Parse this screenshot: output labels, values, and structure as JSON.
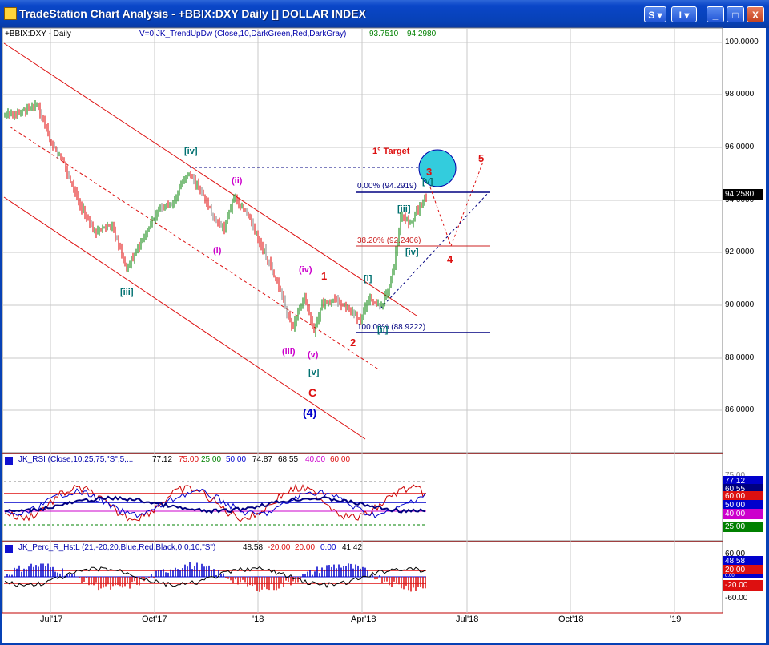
{
  "window": {
    "title": "TradeStation Chart Analysis - +BBIX:DXY Daily [] DOLLAR INDEX",
    "btn_s": "S",
    "btn_i": "I",
    "btn_min": "_",
    "btn_max": "□",
    "btn_close": "X"
  },
  "price_panel": {
    "symbol_label": "+BBIX:DXY - Daily",
    "indicator_label": "V=0  JK_TrendUpDw (Close,10,DarkGreen,Red,DarkGray)",
    "indicator_values": [
      "93.7510",
      "94.2980"
    ],
    "last_price": "94.2580",
    "y_axis": [
      "100.0000",
      "98.0000",
      "96.0000",
      "94.0000",
      "92.0000",
      "90.0000",
      "88.0000",
      "86.0000"
    ],
    "annotations": {
      "target": "1° Target",
      "fib_0": "0.00% (94.2919)",
      "fib_382": "38.20% (92.2406)",
      "fib_100": "100.00% (88.9222)"
    },
    "waves": {
      "iv_green_top": "[iv]",
      "iii_green": "[iii]",
      "ii_mag": "(ii)",
      "i_mag": "(i)",
      "iv_mag": "(iv)",
      "iii_mag": "(iii)",
      "v_mag": "(v)",
      "v_green": "[v]",
      "C_red": "C",
      "four_blue": "(4)",
      "one_red": "1",
      "two_red": "2",
      "three_red": "3",
      "four_red": "4",
      "five_red": "5",
      "i_green_bracket": "[i]",
      "ii_green_bracket": "[ii]",
      "iii_green_bracket": "[iii]",
      "iv_green_bracket": "[iv]",
      "v_green_bracket": "[v]"
    }
  },
  "rsi_panel": {
    "label": "JK_RSI (Close,10,25,75,\"S\",5,...",
    "values": [
      "77.12",
      "75.00",
      "25.00",
      "50.00",
      "74.87",
      "68.55",
      "40.00",
      "60.00"
    ],
    "badges": [
      "77.12",
      "60.55",
      "60.00",
      "50.00",
      "40.00",
      "25.00"
    ],
    "axis_top": "75.00"
  },
  "perc_panel": {
    "label": "JK_Perc_R_HstL (21,-20,20,Blue,Red,Black,0,0,10,\"S\")",
    "values": [
      "48.58",
      "-20.00",
      "20.00",
      "0.00",
      "41.42"
    ],
    "axis": [
      "60.00",
      "-60.00"
    ],
    "badges": [
      "48.58",
      "20.00",
      "0.00",
      "-20.00"
    ]
  },
  "x_axis": [
    "Jul'17",
    "Oct'17",
    "'18",
    "Apr'18",
    "Jul'18",
    "Oct'18",
    "'19"
  ],
  "colors": {
    "channel_red": "#dd1010",
    "bar_green": "#008000",
    "bar_red": "#e00000",
    "bar_gray": "#808080",
    "target_circle": "#33ccdd",
    "fib_line": "#000080",
    "rsi_blue": "#0000cc"
  }
}
